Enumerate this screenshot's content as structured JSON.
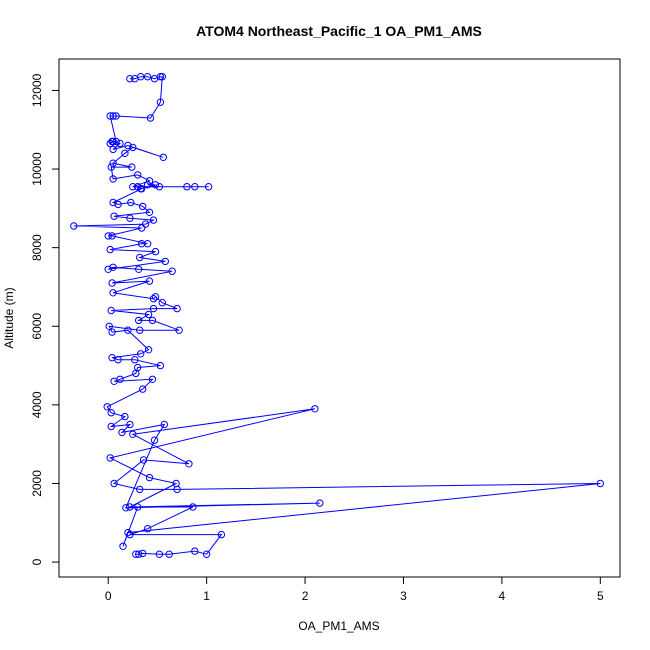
{
  "chart_data": {
    "type": "line",
    "title": "ATOM4 Northeast_Pacific_1 OA_PM1_AMS",
    "xlabel": "OA_PM1_AMS",
    "ylabel": "Altitude (m)",
    "xlim": [
      -0.5,
      5.2
    ],
    "ylim": [
      -380,
      12800
    ],
    "xticks": [
      0,
      1,
      2,
      3,
      4,
      5
    ],
    "yticks": [
      0,
      2000,
      4000,
      6000,
      8000,
      10000,
      12000
    ],
    "grid": false,
    "marker": "open-circle",
    "color": "#0000ff",
    "points": [
      {
        "x": 0.28,
        "y": 200
      },
      {
        "x": 0.31,
        "y": 200
      },
      {
        "x": 0.35,
        "y": 220
      },
      {
        "x": 0.52,
        "y": 200
      },
      {
        "x": 0.62,
        "y": 200
      },
      {
        "x": 0.88,
        "y": 280
      },
      {
        "x": 1.0,
        "y": 200
      },
      {
        "x": 1.15,
        "y": 700
      },
      {
        "x": 0.22,
        "y": 700
      },
      {
        "x": 0.4,
        "y": 850
      },
      {
        "x": 0.86,
        "y": 1400
      },
      {
        "x": 0.3,
        "y": 1400
      },
      {
        "x": 0.15,
        "y": 400
      },
      {
        "x": 0.2,
        "y": 750
      },
      {
        "x": 5.0,
        "y": 2000
      },
      {
        "x": 0.7,
        "y": 1850
      },
      {
        "x": 0.32,
        "y": 1850
      },
      {
        "x": 0.06,
        "y": 2000
      },
      {
        "x": 0.36,
        "y": 2600
      },
      {
        "x": 0.82,
        "y": 2500
      },
      {
        "x": 0.25,
        "y": 3250
      },
      {
        "x": 2.1,
        "y": 3900
      },
      {
        "x": 0.02,
        "y": 2650
      },
      {
        "x": 0.42,
        "y": 2150
      },
      {
        "x": 0.69,
        "y": 2000
      },
      {
        "x": 0.22,
        "y": 1400
      },
      {
        "x": 2.15,
        "y": 1500
      },
      {
        "x": 0.18,
        "y": 1380
      },
      {
        "x": 0.47,
        "y": 3100
      },
      {
        "x": 0.57,
        "y": 3500
      },
      {
        "x": 0.14,
        "y": 3300
      },
      {
        "x": 0.22,
        "y": 3500
      },
      {
        "x": 0.03,
        "y": 3450
      },
      {
        "x": 0.17,
        "y": 3700
      },
      {
        "x": 0.03,
        "y": 3800
      },
      {
        "x": -0.01,
        "y": 3950
      },
      {
        "x": 0.35,
        "y": 4400
      },
      {
        "x": 0.45,
        "y": 4650
      },
      {
        "x": 0.06,
        "y": 4600
      },
      {
        "x": 0.12,
        "y": 4650
      },
      {
        "x": 0.28,
        "y": 4800
      },
      {
        "x": 0.3,
        "y": 4950
      },
      {
        "x": 0.53,
        "y": 5000
      },
      {
        "x": 0.27,
        "y": 5150
      },
      {
        "x": 0.1,
        "y": 5150
      },
      {
        "x": 0.04,
        "y": 5200
      },
      {
        "x": 0.33,
        "y": 5300
      },
      {
        "x": 0.41,
        "y": 5400
      },
      {
        "x": 0.2,
        "y": 5900
      },
      {
        "x": 0.04,
        "y": 5850
      },
      {
        "x": 0.01,
        "y": 6000
      },
      {
        "x": 0.32,
        "y": 5900
      },
      {
        "x": 0.72,
        "y": 5900
      },
      {
        "x": 0.45,
        "y": 6150
      },
      {
        "x": 0.31,
        "y": 6150
      },
      {
        "x": 0.41,
        "y": 6300
      },
      {
        "x": 0.03,
        "y": 6400
      },
      {
        "x": 0.46,
        "y": 6450
      },
      {
        "x": 0.7,
        "y": 6450
      },
      {
        "x": 0.55,
        "y": 6600
      },
      {
        "x": 0.48,
        "y": 6750
      },
      {
        "x": 0.46,
        "y": 6700
      },
      {
        "x": 0.05,
        "y": 6850
      },
      {
        "x": 0.42,
        "y": 7150
      },
      {
        "x": 0.04,
        "y": 7100
      },
      {
        "x": 0.65,
        "y": 7400
      },
      {
        "x": 0.31,
        "y": 7450
      },
      {
        "x": 0.05,
        "y": 7500
      },
      {
        "x": 0.0,
        "y": 7450
      },
      {
        "x": 0.58,
        "y": 7650
      },
      {
        "x": 0.32,
        "y": 7750
      },
      {
        "x": 0.48,
        "y": 7900
      },
      {
        "x": 0.02,
        "y": 7950
      },
      {
        "x": 0.34,
        "y": 8100
      },
      {
        "x": 0.4,
        "y": 8100
      },
      {
        "x": 0.04,
        "y": 8300
      },
      {
        "x": 0.0,
        "y": 8300
      },
      {
        "x": 0.34,
        "y": 8500
      },
      {
        "x": -0.35,
        "y": 8550
      },
      {
        "x": 0.38,
        "y": 8600
      },
      {
        "x": 0.46,
        "y": 8700
      },
      {
        "x": 0.22,
        "y": 8750
      },
      {
        "x": 0.06,
        "y": 8800
      },
      {
        "x": 0.42,
        "y": 8900
      },
      {
        "x": 0.35,
        "y": 9050
      },
      {
        "x": 0.23,
        "y": 9150
      },
      {
        "x": 0.1,
        "y": 9100
      },
      {
        "x": 0.05,
        "y": 9150
      },
      {
        "x": 0.34,
        "y": 9500
      },
      {
        "x": 0.3,
        "y": 9550
      },
      {
        "x": 0.33,
        "y": 9500
      },
      {
        "x": 0.48,
        "y": 9600
      },
      {
        "x": 0.4,
        "y": 9600
      },
      {
        "x": 0.52,
        "y": 9550
      },
      {
        "x": 0.8,
        "y": 9550
      },
      {
        "x": 0.88,
        "y": 9550
      },
      {
        "x": 1.02,
        "y": 9550
      },
      {
        "x": 0.25,
        "y": 9550
      },
      {
        "x": 0.42,
        "y": 9700
      },
      {
        "x": 0.3,
        "y": 9850
      },
      {
        "x": 0.05,
        "y": 9750
      },
      {
        "x": 0.03,
        "y": 10050
      },
      {
        "x": 0.24,
        "y": 10050
      },
      {
        "x": 0.05,
        "y": 10150
      },
      {
        "x": 0.17,
        "y": 10400
      },
      {
        "x": 0.25,
        "y": 10550
      },
      {
        "x": 0.56,
        "y": 10300
      },
      {
        "x": 0.2,
        "y": 10600
      },
      {
        "x": 0.05,
        "y": 10500
      },
      {
        "x": 0.12,
        "y": 10650
      },
      {
        "x": 0.05,
        "y": 10700
      },
      {
        "x": 0.02,
        "y": 10650
      },
      {
        "x": 0.04,
        "y": 10700
      },
      {
        "x": 0.08,
        "y": 10700
      },
      {
        "x": 0.02,
        "y": 11350
      },
      {
        "x": 0.05,
        "y": 11350
      },
      {
        "x": 0.08,
        "y": 11350
      },
      {
        "x": 0.43,
        "y": 11300
      },
      {
        "x": 0.53,
        "y": 11700
      },
      {
        "x": 0.55,
        "y": 12350
      },
      {
        "x": 0.53,
        "y": 12350
      },
      {
        "x": 0.47,
        "y": 12300
      },
      {
        "x": 0.4,
        "y": 12350
      },
      {
        "x": 0.33,
        "y": 12350
      },
      {
        "x": 0.27,
        "y": 12300
      },
      {
        "x": 0.22,
        "y": 12300
      }
    ]
  }
}
